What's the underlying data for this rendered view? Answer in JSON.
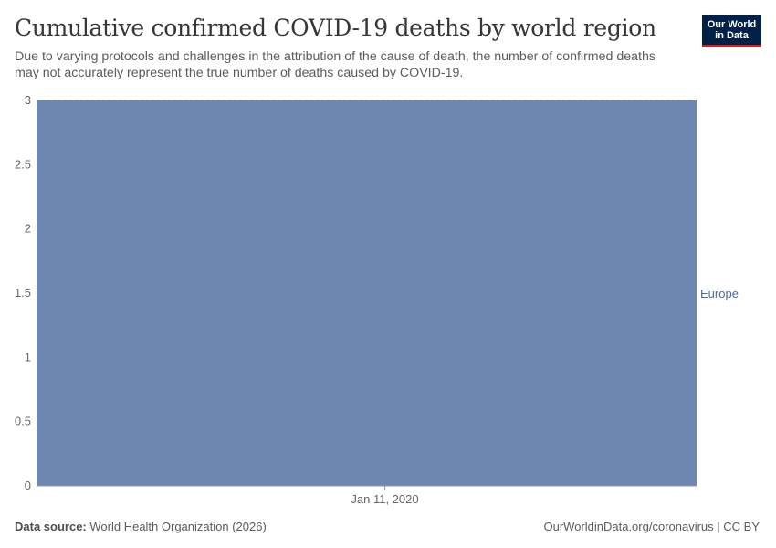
{
  "header": {
    "title": "Cumulative confirmed COVID-19 deaths by world region",
    "subtitle": "Due to varying protocols and challenges in the attribution of the cause of death, the number of confirmed deaths may not accurately represent the true number of deaths caused by COVID-19."
  },
  "logo": {
    "line1": "Our World",
    "line2": "in Data"
  },
  "chart_data": {
    "type": "area",
    "title": "Cumulative confirmed COVID-19 deaths by world region",
    "xlabel": "",
    "ylabel": "",
    "x": [
      "Jan 11, 2020"
    ],
    "x_ticks": [
      "Jan 11, 2020"
    ],
    "y_ticks": [
      0,
      0.5,
      1,
      1.5,
      2,
      2.5,
      3
    ],
    "y_tick_labels": [
      "0",
      "0.5",
      "1",
      "1.5",
      "2",
      "2.5",
      "3"
    ],
    "ylim": [
      0,
      3
    ],
    "grid": "horizontal dashed",
    "legend": "right, inline",
    "series": [
      {
        "name": "Europe",
        "values": [
          3
        ],
        "color": "#6d87b0"
      }
    ]
  },
  "footer": {
    "source_label": "Data source:",
    "source_text": "World Health Organization (2026)",
    "url": "OurWorldinData.org/coronavirus",
    "license": "CC BY",
    "separator": " | "
  }
}
